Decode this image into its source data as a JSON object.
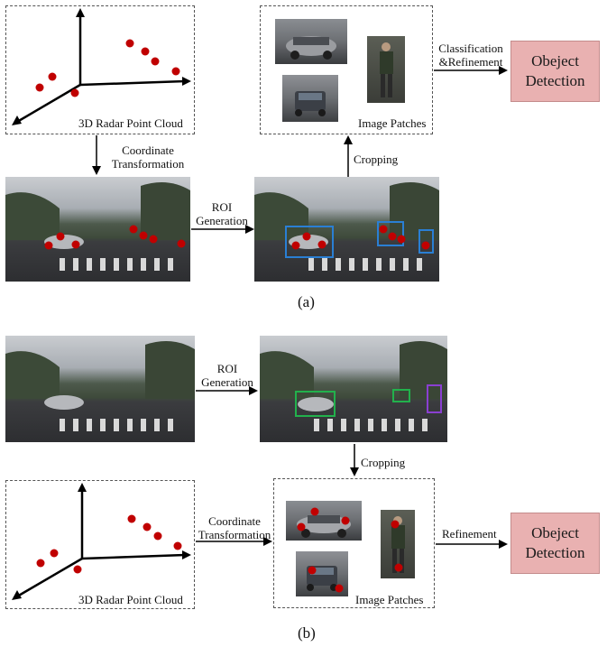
{
  "panel_a": {
    "point_cloud_label": "3D Radar Point Cloud",
    "coord_transform_line1": "Coordinate",
    "coord_transform_line2": "Transformation",
    "roi_line1": "ROI",
    "roi_line2": "Generation",
    "cropping": "Cropping",
    "image_patches": "Image Patches",
    "classification_line1": "Classification",
    "classification_line2": "&Refinement",
    "detection_line1": "Obeject",
    "detection_line2": "Detection",
    "caption": "(a)"
  },
  "panel_b": {
    "roi_line1": "ROI",
    "roi_line2": "Generation",
    "cropping": "Cropping",
    "point_cloud_label": "3D Radar Point Cloud",
    "coord_transform_line1": "Coordinate",
    "coord_transform_line2": "Transformation",
    "image_patches": "Image Patches",
    "refinement": "Refinement",
    "detection_line1": "Obeject",
    "detection_line2": "Detection",
    "caption": "(b)"
  },
  "colors": {
    "radar_point": "#c00000",
    "roi_box_blue": "#2a7fd4",
    "roi_box_green": "#22b14c",
    "roi_box_purple": "#8a3fd1",
    "detection_box": "#e9b1b1"
  }
}
